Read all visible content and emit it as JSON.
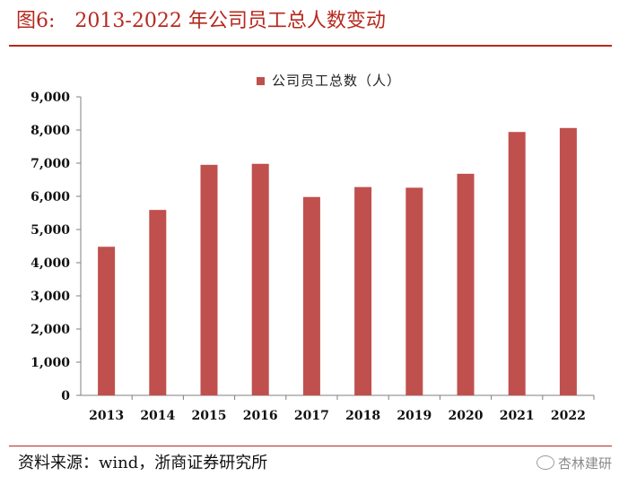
{
  "figure": {
    "label": "图6:",
    "title": "2013-2022 年公司员工总人数变动"
  },
  "source": "资料来源：wind，浙商证券研究所",
  "watermark": "杏林建研",
  "colors": {
    "accent": "#b7281e",
    "bar": "#c0504d",
    "axis": "#7f7f7f"
  },
  "chart_data": {
    "type": "bar",
    "title": "2013-2022 年公司员工总人数变动",
    "xlabel": "",
    "ylabel": "",
    "categories": [
      "2013",
      "2014",
      "2015",
      "2016",
      "2017",
      "2018",
      "2019",
      "2020",
      "2021",
      "2022"
    ],
    "series": [
      {
        "name": "公司员工总数（人）",
        "values": [
          4480,
          5590,
          6950,
          6980,
          5980,
          6280,
          6260,
          6680,
          7940,
          8060
        ]
      }
    ],
    "y_ticks": [
      "0",
      "1,000",
      "2,000",
      "3,000",
      "4,000",
      "5,000",
      "6,000",
      "7,000",
      "8,000",
      "9,000"
    ],
    "ylim": [
      0,
      9000
    ],
    "grid": false,
    "legend": "top-center"
  }
}
